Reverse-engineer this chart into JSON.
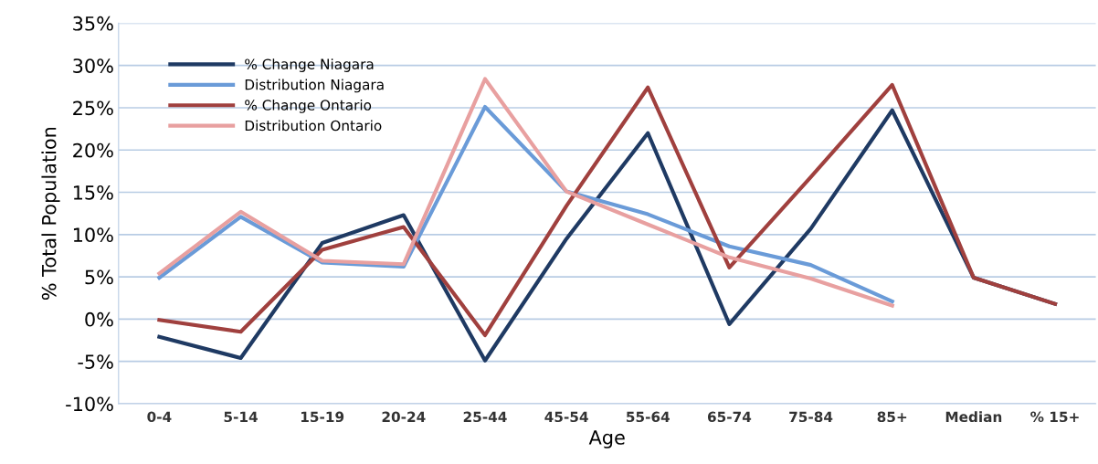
{
  "chart_data": {
    "type": "line",
    "xlabel": "Age",
    "ylabel": "% Total Population",
    "categories": [
      "0-4",
      "5-14",
      "15-19",
      "20-24",
      "25-44",
      "45-54",
      "55-64",
      "65-74",
      "75-84",
      "85+",
      "Median",
      "% 15+"
    ],
    "series": [
      {
        "name": "% Change Niagara",
        "color": "#1f3a63",
        "values": [
          -2.1,
          -4.6,
          9.0,
          12.3,
          -4.9,
          9.5,
          22.0,
          -0.6,
          10.7,
          24.7,
          4.9,
          1.8
        ]
      },
      {
        "name": "Distribution Niagara",
        "color": "#6a9bd8",
        "values": [
          4.9,
          12.1,
          6.7,
          6.2,
          25.1,
          15.1,
          12.4,
          8.6,
          6.4,
          2.1,
          null,
          null
        ]
      },
      {
        "name": "% Change Ontario",
        "color": "#a0403e",
        "values": [
          -0.1,
          -1.5,
          8.2,
          10.9,
          -1.9,
          13.4,
          27.4,
          6.1,
          16.8,
          27.7,
          4.9,
          1.8
        ]
      },
      {
        "name": "Distribution Ontario",
        "color": "#e8a0a0",
        "values": [
          5.4,
          12.7,
          6.9,
          6.5,
          28.4,
          15.1,
          11.2,
          7.3,
          4.8,
          1.6,
          null,
          null
        ]
      }
    ],
    "ylim": [
      -10,
      35
    ],
    "yticks": [
      {
        "value": -10,
        "label": "-10%"
      },
      {
        "value": -5,
        "label": "-5%"
      },
      {
        "value": 0,
        "label": "0%"
      },
      {
        "value": 5,
        "label": "5%"
      },
      {
        "value": 10,
        "label": "10%"
      },
      {
        "value": 15,
        "label": "15%"
      },
      {
        "value": 20,
        "label": "20%"
      },
      {
        "value": 25,
        "label": "25%"
      },
      {
        "value": 30,
        "label": "30%"
      },
      {
        "value": 35,
        "label": "35%"
      }
    ],
    "grid": "y",
    "legend": "top left",
    "marker": "none",
    "line_style": "solid"
  }
}
